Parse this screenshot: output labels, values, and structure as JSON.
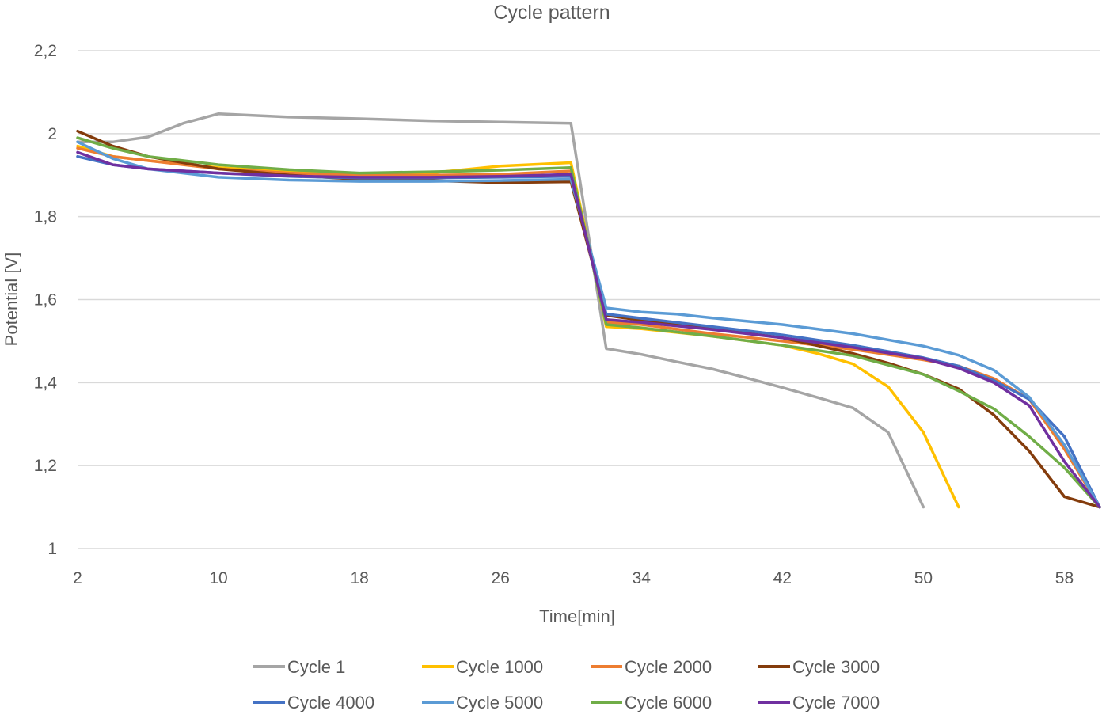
{
  "chart_data": {
    "type": "line",
    "title": "Cycle pattern",
    "xlabel": "Time[min]",
    "ylabel": "Potential [V]",
    "xlim": [
      2,
      60
    ],
    "ylim": [
      1,
      2.2
    ],
    "x_ticks": [
      2,
      10,
      18,
      26,
      34,
      42,
      50,
      58
    ],
    "x_tick_labels": [
      "2",
      "10",
      "18",
      "26",
      "34",
      "42",
      "50",
      "58"
    ],
    "y_ticks": [
      1,
      1.2,
      1.4,
      1.6,
      1.8,
      2,
      2.2
    ],
    "y_tick_labels": [
      "1",
      "1,2",
      "1,4",
      "1,6",
      "1,8",
      "2",
      "2,2"
    ],
    "grid": "horizontal",
    "legend_position": "bottom",
    "series": [
      {
        "name": "Cycle 1",
        "color": "#a5a5a5",
        "x": [
          2,
          4,
          6,
          8,
          10,
          14,
          18,
          22,
          26,
          30,
          32,
          34,
          36,
          38,
          40,
          42,
          44,
          46,
          48,
          50
        ],
        "y": [
          1.98,
          1.98,
          1.992,
          2.025,
          2.048,
          2.04,
          2.036,
          2.031,
          2.028,
          2.025,
          1.482,
          1.468,
          1.45,
          1.433,
          1.411,
          1.388,
          1.364,
          1.339,
          1.28,
          1.1
        ]
      },
      {
        "name": "Cycle 1000",
        "color": "#ffc000",
        "x": [
          2,
          4,
          6,
          10,
          14,
          18,
          22,
          26,
          30,
          32,
          34,
          38,
          42,
          44,
          46,
          48,
          50,
          52
        ],
        "y": [
          1.97,
          1.945,
          1.935,
          1.918,
          1.908,
          1.902,
          1.905,
          1.922,
          1.93,
          1.535,
          1.53,
          1.512,
          1.49,
          1.47,
          1.445,
          1.39,
          1.28,
          1.1
        ]
      },
      {
        "name": "Cycle 2000",
        "color": "#ed7d31",
        "x": [
          2,
          4,
          6,
          10,
          14,
          18,
          22,
          26,
          30,
          32,
          34,
          38,
          42,
          46,
          50,
          52,
          54,
          56,
          58,
          60
        ],
        "y": [
          1.965,
          1.945,
          1.935,
          1.915,
          1.905,
          1.9,
          1.9,
          1.902,
          1.91,
          1.545,
          1.54,
          1.518,
          1.5,
          1.48,
          1.455,
          1.44,
          1.41,
          1.36,
          1.24,
          1.1
        ]
      },
      {
        "name": "Cycle 3000",
        "color": "#843c0c",
        "x": [
          2,
          4,
          6,
          10,
          14,
          18,
          22,
          26,
          30,
          32,
          34,
          38,
          42,
          46,
          48,
          50,
          52,
          54,
          56,
          58,
          60
        ],
        "y": [
          2.006,
          1.97,
          1.945,
          1.915,
          1.9,
          1.89,
          1.887,
          1.882,
          1.884,
          1.562,
          1.55,
          1.53,
          1.508,
          1.47,
          1.447,
          1.42,
          1.385,
          1.322,
          1.235,
          1.125,
          1.1
        ]
      },
      {
        "name": "Cycle 4000",
        "color": "#4472c4",
        "x": [
          2,
          4,
          6,
          10,
          14,
          18,
          22,
          26,
          30,
          32,
          34,
          38,
          42,
          46,
          50,
          52,
          54,
          56,
          58,
          60
        ],
        "y": [
          1.945,
          1.925,
          1.915,
          1.905,
          1.897,
          1.893,
          1.893,
          1.895,
          1.897,
          1.565,
          1.555,
          1.535,
          1.515,
          1.49,
          1.46,
          1.44,
          1.405,
          1.36,
          1.27,
          1.1
        ]
      },
      {
        "name": "Cycle 5000",
        "color": "#5b9bd5",
        "x": [
          2,
          4,
          6,
          8,
          10,
          14,
          18,
          22,
          26,
          30,
          32,
          34,
          36,
          38,
          42,
          46,
          50,
          52,
          54,
          56,
          58,
          60
        ],
        "y": [
          1.98,
          1.94,
          1.915,
          1.905,
          1.895,
          1.888,
          1.885,
          1.885,
          1.887,
          1.89,
          1.58,
          1.57,
          1.565,
          1.556,
          1.54,
          1.518,
          1.488,
          1.466,
          1.43,
          1.365,
          1.25,
          1.1
        ]
      },
      {
        "name": "Cycle 6000",
        "color": "#70ad47",
        "x": [
          2,
          4,
          6,
          10,
          14,
          18,
          22,
          26,
          30,
          32,
          34,
          38,
          42,
          46,
          50,
          52,
          54,
          56,
          58,
          60
        ],
        "y": [
          1.99,
          1.965,
          1.945,
          1.925,
          1.913,
          1.905,
          1.908,
          1.912,
          1.918,
          1.54,
          1.532,
          1.512,
          1.49,
          1.465,
          1.42,
          1.38,
          1.337,
          1.27,
          1.195,
          1.1
        ]
      },
      {
        "name": "Cycle 7000",
        "color": "#7030a0",
        "x": [
          2,
          4,
          6,
          10,
          14,
          18,
          22,
          26,
          30,
          32,
          34,
          38,
          42,
          46,
          50,
          52,
          54,
          56,
          58,
          60
        ],
        "y": [
          1.955,
          1.925,
          1.915,
          1.905,
          1.898,
          1.895,
          1.895,
          1.897,
          1.902,
          1.552,
          1.545,
          1.528,
          1.508,
          1.485,
          1.458,
          1.435,
          1.4,
          1.345,
          1.21,
          1.1
        ]
      }
    ]
  }
}
